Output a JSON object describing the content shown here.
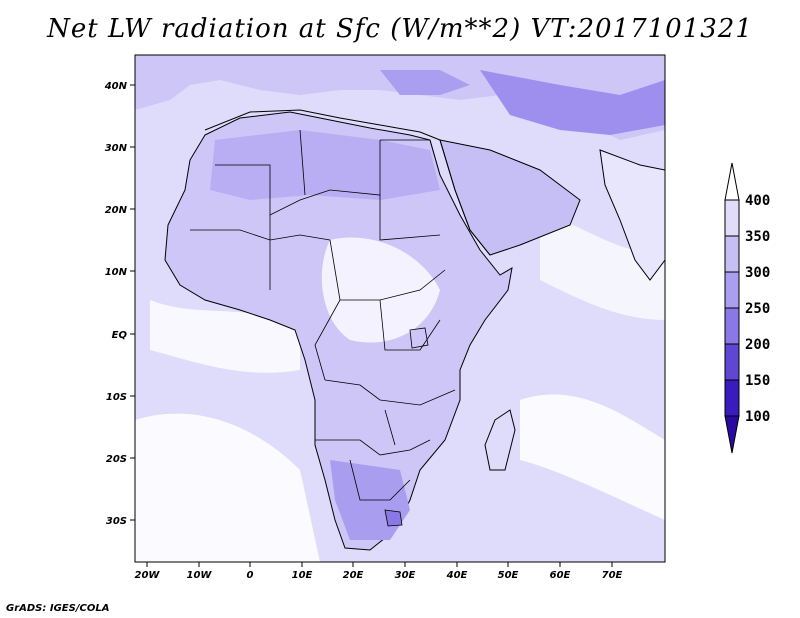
{
  "title": "Net LW radiation at Sfc (W/m**2) VT:2017101321",
  "credit": "GrADS: IGES/COLA",
  "axes": {
    "x_ticks": [
      "20W",
      "10W",
      "0",
      "10E",
      "20E",
      "30E",
      "40E",
      "50E",
      "60E",
      "70E"
    ],
    "y_ticks": [
      "40N",
      "30N",
      "20N",
      "10N",
      "EQ",
      "10S",
      "20S",
      "30S"
    ]
  },
  "colorbar": {
    "levels": [
      "400",
      "350",
      "300",
      "250",
      "200",
      "150",
      "100"
    ],
    "colors": [
      "#ffffff",
      "#e0dcfa",
      "#c6bff5",
      "#aa9ef0",
      "#8a78e6",
      "#5f46d4",
      "#3a1bbd",
      "#2a0aa0"
    ]
  },
  "map_colors": {
    "ocean": "#dedcfa",
    "land_dry": "#cdc6f7",
    "desert": "#b9adf3",
    "highland": "#9e8eee",
    "cloud": "#ffffff",
    "border": "#000000"
  }
}
